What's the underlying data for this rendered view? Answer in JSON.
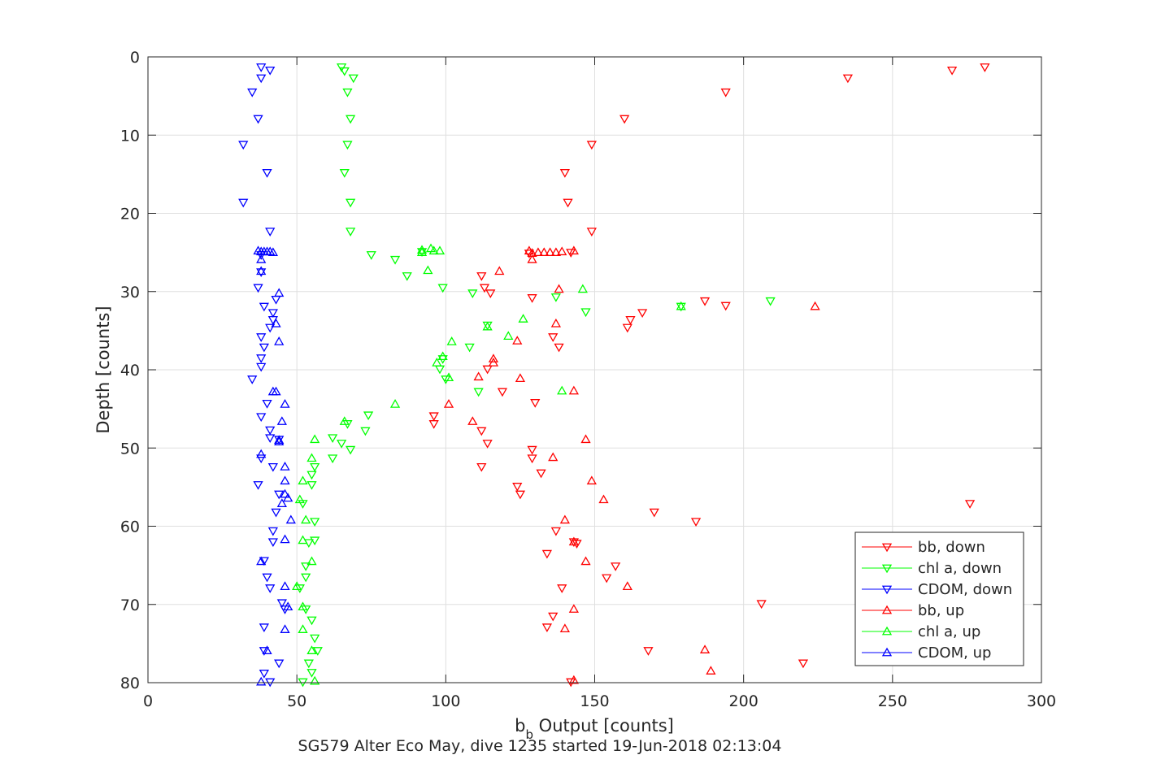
{
  "chart_data": {
    "type": "scatter",
    "xlabel_main": "b",
    "xlabel_sub": "b",
    "xlabel_rest": " Output [counts]",
    "ylabel": "Depth [counts]",
    "caption": "SG579 Alter Eco May, dive 1235 started 19-Jun-2018 02:13:04",
    "xlim": [
      0,
      300
    ],
    "ylim": [
      0,
      80
    ],
    "y_reversed": true,
    "grid": true,
    "legend_position": "bottom-right",
    "x_ticks": [
      "0",
      "50",
      "100",
      "150",
      "200",
      "250",
      "300"
    ],
    "y_ticks": [
      "0",
      "10",
      "20",
      "30",
      "40",
      "50",
      "60",
      "70",
      "80"
    ],
    "series": [
      {
        "name": "bb, down",
        "color": "#ff0000",
        "marker": "triangle-down",
        "points": [
          [
            281,
            1.3
          ],
          [
            270,
            1.7
          ],
          [
            235,
            2.7
          ],
          [
            194,
            4.5
          ],
          [
            160,
            7.9
          ],
          [
            149,
            11.2
          ],
          [
            140,
            14.8
          ],
          [
            141,
            18.6
          ],
          [
            149,
            22.3
          ],
          [
            142,
            25.0
          ],
          [
            128,
            25.1
          ],
          [
            112,
            28.0
          ],
          [
            113,
            29.5
          ],
          [
            115,
            30.2
          ],
          [
            129,
            30.8
          ],
          [
            187,
            31.2
          ],
          [
            194,
            31.8
          ],
          [
            166,
            32.7
          ],
          [
            162,
            33.6
          ],
          [
            161,
            34.6
          ],
          [
            136,
            35.8
          ],
          [
            138,
            37.1
          ],
          [
            114,
            39.9
          ],
          [
            119,
            42.8
          ],
          [
            130,
            44.2
          ],
          [
            96,
            45.9
          ],
          [
            96,
            46.9
          ],
          [
            112,
            47.8
          ],
          [
            114,
            49.4
          ],
          [
            129,
            50.2
          ],
          [
            129,
            51.3
          ],
          [
            132,
            53.2
          ],
          [
            112,
            52.4
          ],
          [
            124,
            54.9
          ],
          [
            125,
            55.9
          ],
          [
            276,
            57.1
          ],
          [
            170,
            58.2
          ],
          [
            184,
            59.4
          ],
          [
            137,
            60.6
          ],
          [
            143,
            62.0
          ],
          [
            144,
            62.2
          ],
          [
            134,
            63.5
          ],
          [
            157,
            65.1
          ],
          [
            154,
            66.6
          ],
          [
            139,
            67.9
          ],
          [
            206,
            69.9
          ],
          [
            136,
            71.5
          ],
          [
            134,
            72.9
          ],
          [
            168,
            75.9
          ],
          [
            220,
            77.5
          ],
          [
            142,
            79.9
          ]
        ]
      },
      {
        "name": "chl a, down",
        "color": "#00ff00",
        "marker": "triangle-down",
        "points": [
          [
            65,
            1.3
          ],
          [
            66,
            1.8
          ],
          [
            69,
            2.7
          ],
          [
            67,
            4.5
          ],
          [
            68,
            7.9
          ],
          [
            67,
            11.2
          ],
          [
            66,
            14.8
          ],
          [
            68,
            18.6
          ],
          [
            68,
            22.3
          ],
          [
            75,
            25.3
          ],
          [
            83,
            25.9
          ],
          [
            87,
            28.0
          ],
          [
            92,
            24.9
          ],
          [
            99,
            29.5
          ],
          [
            109,
            30.2
          ],
          [
            137,
            30.7
          ],
          [
            209,
            31.2
          ],
          [
            179,
            31.9
          ],
          [
            147,
            32.6
          ],
          [
            114,
            34.3
          ],
          [
            108,
            37.1
          ],
          [
            98,
            39.9
          ],
          [
            99,
            38.6
          ],
          [
            100,
            41.2
          ],
          [
            111,
            42.8
          ],
          [
            74,
            45.8
          ],
          [
            67,
            46.9
          ],
          [
            73,
            47.8
          ],
          [
            62,
            48.7
          ],
          [
            65,
            49.4
          ],
          [
            68,
            50.2
          ],
          [
            62,
            51.3
          ],
          [
            56,
            52.4
          ],
          [
            55,
            53.4
          ],
          [
            55,
            54.7
          ],
          [
            52,
            57.1
          ],
          [
            56,
            59.4
          ],
          [
            56,
            61.8
          ],
          [
            54,
            62.1
          ],
          [
            53,
            65.1
          ],
          [
            53,
            66.5
          ],
          [
            51,
            67.9
          ],
          [
            53,
            70.6
          ],
          [
            55,
            72.0
          ],
          [
            56,
            74.3
          ],
          [
            57,
            75.9
          ],
          [
            54,
            77.5
          ],
          [
            55,
            78.7
          ],
          [
            52,
            79.9
          ]
        ]
      },
      {
        "name": "CDOM, down",
        "color": "#0000ff",
        "marker": "triangle-down",
        "points": [
          [
            38,
            1.3
          ],
          [
            41,
            1.7
          ],
          [
            38,
            2.7
          ],
          [
            35,
            4.5
          ],
          [
            37,
            7.9
          ],
          [
            32,
            11.2
          ],
          [
            40,
            14.8
          ],
          [
            32,
            18.6
          ],
          [
            41,
            22.3
          ],
          [
            38,
            25.3
          ],
          [
            38,
            27.5
          ],
          [
            37,
            29.5
          ],
          [
            39,
            31.9
          ],
          [
            42,
            32.7
          ],
          [
            43,
            31.0
          ],
          [
            42,
            33.6
          ],
          [
            41,
            34.6
          ],
          [
            38,
            35.8
          ],
          [
            39,
            37.1
          ],
          [
            38,
            38.5
          ],
          [
            38,
            39.6
          ],
          [
            35,
            41.2
          ],
          [
            40,
            44.3
          ],
          [
            38,
            46.0
          ],
          [
            41,
            47.7
          ],
          [
            41,
            48.7
          ],
          [
            44,
            48.9
          ],
          [
            38,
            51.3
          ],
          [
            42,
            52.4
          ],
          [
            37,
            54.7
          ],
          [
            44,
            55.9
          ],
          [
            43,
            58.2
          ],
          [
            42,
            60.6
          ],
          [
            42,
            62.0
          ],
          [
            39,
            64.4
          ],
          [
            40,
            66.5
          ],
          [
            41,
            67.9
          ],
          [
            45,
            69.8
          ],
          [
            46,
            70.6
          ],
          [
            39,
            72.9
          ],
          [
            39,
            75.9
          ],
          [
            44,
            77.5
          ],
          [
            39,
            78.8
          ],
          [
            41,
            79.9
          ]
        ]
      },
      {
        "name": "bb, up",
        "color": "#ff0000",
        "marker": "triangle-up",
        "points": [
          [
            128,
            24.8
          ],
          [
            129,
            25.1
          ],
          [
            131,
            25.0
          ],
          [
            133,
            25.0
          ],
          [
            135,
            25.0
          ],
          [
            137,
            25.0
          ],
          [
            139,
            24.9
          ],
          [
            143,
            24.8
          ],
          [
            129,
            25.9
          ],
          [
            118,
            27.4
          ],
          [
            138,
            29.7
          ],
          [
            224,
            31.9
          ],
          [
            137,
            34.1
          ],
          [
            124,
            36.3
          ],
          [
            116,
            38.6
          ],
          [
            116,
            39.1
          ],
          [
            111,
            40.9
          ],
          [
            125,
            41.1
          ],
          [
            143,
            42.7
          ],
          [
            101,
            44.4
          ],
          [
            109,
            46.6
          ],
          [
            147,
            48.9
          ],
          [
            136,
            51.2
          ],
          [
            149,
            54.2
          ],
          [
            153,
            56.6
          ],
          [
            140,
            59.2
          ],
          [
            143,
            62.0
          ],
          [
            147,
            64.5
          ],
          [
            161,
            67.7
          ],
          [
            143,
            70.6
          ],
          [
            140,
            73.1
          ],
          [
            187,
            75.8
          ],
          [
            189,
            78.5
          ],
          [
            143,
            79.7
          ]
        ]
      },
      {
        "name": "chl a, up",
        "color": "#00ff00",
        "marker": "triangle-up",
        "points": [
          [
            92,
            24.7
          ],
          [
            95,
            24.5
          ],
          [
            96,
            24.8
          ],
          [
            98,
            24.8
          ],
          [
            92,
            25.0
          ],
          [
            94,
            27.3
          ],
          [
            146,
            29.7
          ],
          [
            179,
            31.9
          ],
          [
            126,
            33.5
          ],
          [
            114,
            34.5
          ],
          [
            121,
            35.7
          ],
          [
            102,
            36.4
          ],
          [
            99,
            38.3
          ],
          [
            97,
            39.1
          ],
          [
            101,
            41.0
          ],
          [
            139,
            42.7
          ],
          [
            83,
            44.4
          ],
          [
            66,
            46.6
          ],
          [
            56,
            48.9
          ],
          [
            55,
            51.3
          ],
          [
            52,
            54.2
          ],
          [
            51,
            56.6
          ],
          [
            53,
            59.2
          ],
          [
            52,
            61.8
          ],
          [
            55,
            64.5
          ],
          [
            50,
            67.7
          ],
          [
            52,
            70.3
          ],
          [
            52,
            73.2
          ],
          [
            55,
            75.9
          ],
          [
            56,
            79.8
          ]
        ]
      },
      {
        "name": "CDOM, up",
        "color": "#0000ff",
        "marker": "triangle-up",
        "points": [
          [
            37,
            24.8
          ],
          [
            38,
            24.9
          ],
          [
            39,
            24.9
          ],
          [
            40,
            24.9
          ],
          [
            41,
            24.9
          ],
          [
            42,
            25.0
          ],
          [
            38,
            25.9
          ],
          [
            38,
            27.4
          ],
          [
            44,
            30.2
          ],
          [
            43,
            34.1
          ],
          [
            44,
            36.4
          ],
          [
            43,
            42.8
          ],
          [
            42,
            42.8
          ],
          [
            46,
            44.4
          ],
          [
            45,
            46.6
          ],
          [
            44,
            49.0
          ],
          [
            44,
            49.2
          ],
          [
            38,
            50.8
          ],
          [
            46,
            52.4
          ],
          [
            46,
            54.2
          ],
          [
            46,
            55.9
          ],
          [
            47,
            56.4
          ],
          [
            45,
            57.1
          ],
          [
            48,
            59.2
          ],
          [
            46,
            61.7
          ],
          [
            38,
            64.5
          ],
          [
            46,
            67.7
          ],
          [
            47,
            70.3
          ],
          [
            46,
            73.2
          ],
          [
            40,
            75.9
          ],
          [
            38,
            79.9
          ]
        ]
      }
    ]
  }
}
